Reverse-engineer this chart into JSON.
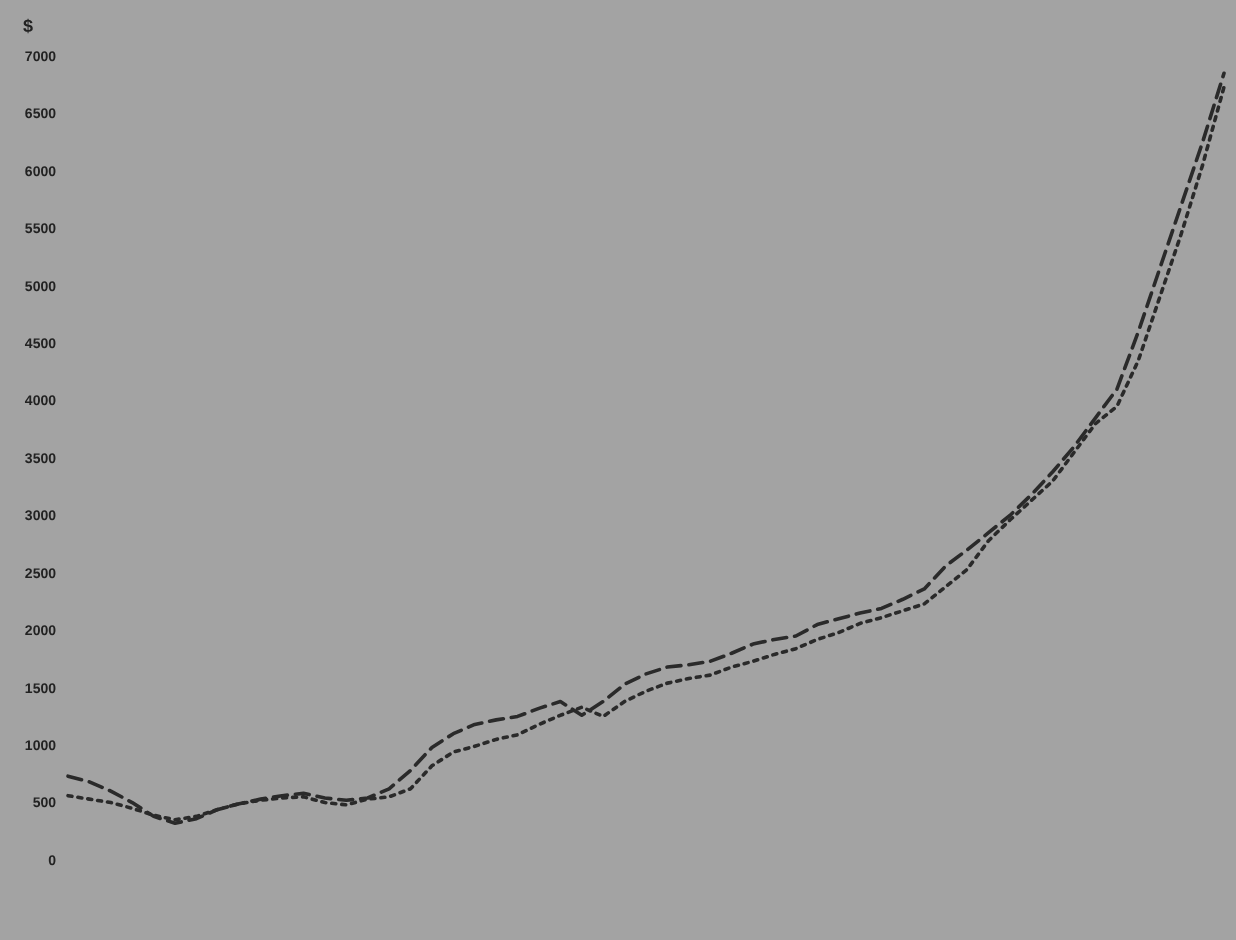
{
  "chart_data": {
    "type": "line",
    "ylabel": "$",
    "categories": [
      null,
      null,
      null,
      null,
      null,
      null,
      null,
      null,
      null,
      null,
      null,
      null,
      null,
      null,
      null,
      null,
      null,
      null,
      null,
      null,
      null,
      null,
      null,
      null,
      null,
      null,
      null,
      null,
      null,
      null,
      null,
      null,
      null,
      null,
      null,
      null,
      null,
      null,
      null,
      null,
      null,
      null,
      null,
      null,
      null,
      null,
      null,
      null,
      null,
      null,
      null,
      null,
      null,
      null,
      null
    ],
    "ylim": [
      0,
      7000
    ],
    "yticks": [
      0,
      500,
      1000,
      1500,
      2000,
      2500,
      3000,
      3500,
      4000,
      4500,
      5000,
      5500,
      6000,
      6500,
      7000
    ],
    "series": [
      {
        "color": "#2a2a2a",
        "line_style": "dashed",
        "values": [
          730,
          680,
          600,
          500,
          380,
          320,
          360,
          440,
          490,
          530,
          560,
          580,
          540,
          520,
          540,
          620,
          780,
          980,
          1100,
          1180,
          1220,
          1250,
          1320,
          1380,
          1260,
          1380,
          1530,
          1620,
          1680,
          1700,
          1730,
          1800,
          1880,
          1920,
          1950,
          2050,
          2100,
          2150,
          2190,
          2270,
          2360,
          2560,
          2700,
          2850,
          3000,
          3180,
          3380,
          3600,
          3850,
          4100,
          4600,
          5150,
          5700,
          6250,
          6850
        ]
      },
      {
        "color": "#2a2a2a",
        "line_style": "dotted",
        "values": [
          560,
          530,
          500,
          450,
          390,
          350,
          380,
          440,
          490,
          520,
          540,
          550,
          500,
          480,
          530,
          550,
          620,
          820,
          940,
          990,
          1050,
          1090,
          1180,
          1260,
          1330,
          1250,
          1380,
          1470,
          1540,
          1580,
          1610,
          1680,
          1730,
          1790,
          1840,
          1920,
          1980,
          2060,
          2110,
          2170,
          2230,
          2380,
          2530,
          2780,
          2960,
          3130,
          3300,
          3550,
          3800,
          3950,
          4350,
          4900,
          5450,
          6050,
          6730
        ]
      }
    ]
  }
}
